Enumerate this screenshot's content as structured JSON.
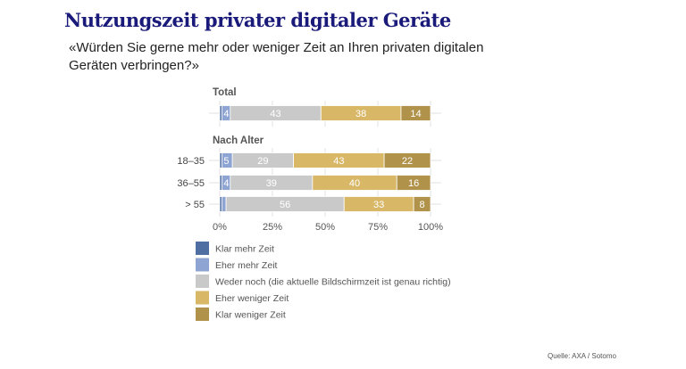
{
  "page": {
    "title": "Nutzungszeit privater digitaler Geräte",
    "subtitle": "«Würden Sie gerne mehr oder weniger Zeit an Ihren privaten digitalen Geräten verbringen?»",
    "source": "Quelle: AXA / Sotomo"
  },
  "chart_data": {
    "type": "bar",
    "orientation": "horizontal",
    "stacked": true,
    "title": "Nutzungszeit privater digitaler Geräte",
    "subtitle": "«Würden Sie gerne mehr oder weniger Zeit an Ihren privaten digitalen Geräten verbringen?»",
    "xlabel": "",
    "ylabel": "",
    "xlim": [
      0,
      100
    ],
    "x_ticks": [
      "0%",
      "25%",
      "50%",
      "75%",
      "100%"
    ],
    "grid": true,
    "legend_position": "bottom-left",
    "groups": [
      {
        "label": "Total",
        "categories": [
          ""
        ]
      },
      {
        "label": "Nach Alter",
        "categories": [
          "18–35",
          "36–55",
          "> 55"
        ]
      }
    ],
    "categories": [
      "Total",
      "18–35",
      "36–55",
      "> 55"
    ],
    "series": [
      {
        "name": "Klar mehr Zeit",
        "color": "#4f6fa3",
        "values": [
          1,
          1,
          1,
          1
        ],
        "labels": [
          "",
          "",
          "",
          ""
        ]
      },
      {
        "name": "Eher mehr Zeit",
        "color": "#8ea4d2",
        "values": [
          4,
          5,
          4,
          2
        ],
        "labels": [
          "4",
          "5",
          "4",
          ""
        ]
      },
      {
        "name": "Weder noch (die aktuelle Bildschirmzeit ist genau richtig)",
        "color": "#c9c9c9",
        "values": [
          43,
          29,
          39,
          56
        ],
        "labels": [
          "43",
          "29",
          "39",
          "56"
        ]
      },
      {
        "name": "Eher weniger Zeit",
        "color": "#d8b766",
        "values": [
          38,
          43,
          40,
          33
        ],
        "labels": [
          "38",
          "43",
          "40",
          "33"
        ]
      },
      {
        "name": "Klar weniger Zeit",
        "color": "#b0924a",
        "values": [
          14,
          22,
          16,
          8
        ],
        "labels": [
          "14",
          "22",
          "16",
          "8"
        ]
      }
    ]
  }
}
